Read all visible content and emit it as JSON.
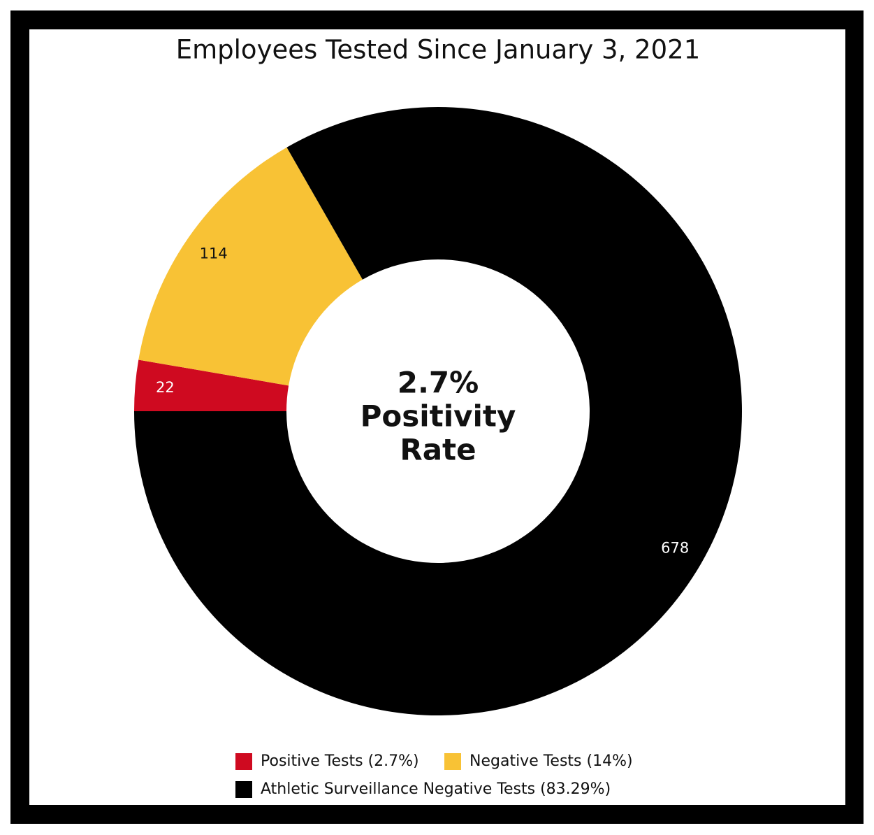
{
  "chart_data": {
    "type": "donut",
    "title": "Employees Tested Since January 3, 2021",
    "center_label": [
      "2.7%",
      "Positivity",
      "Rate"
    ],
    "categories": [
      "Positive Tests (2.7%)",
      "Negative Tests (14%)",
      "Athletic Surveillance Negative Tests (83.29%)"
    ],
    "values": [
      22,
      114,
      678
    ],
    "colors": [
      "#cf0a20",
      "#f8c235",
      "#000000"
    ],
    "label_colors": [
      "#ffffff",
      "#111111",
      "#ffffff"
    ]
  }
}
